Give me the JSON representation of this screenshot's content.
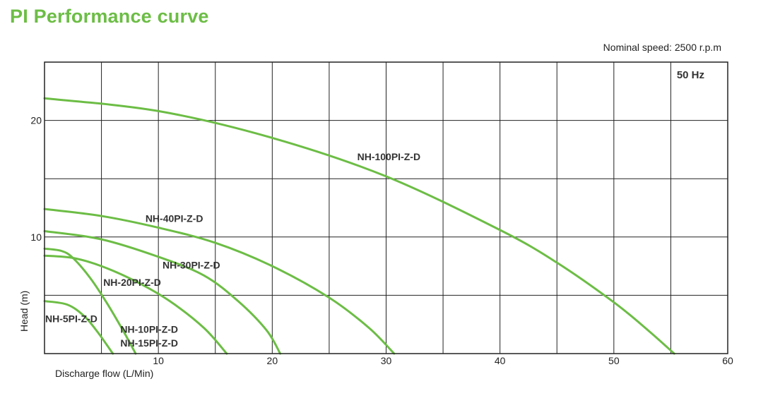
{
  "chart_data": {
    "type": "line",
    "title": "PI Performance curve",
    "subtitle": "Nominal speed: 2500 r.p.m",
    "annotation": "50 Hz",
    "xlabel": "Discharge flow (L/Min)",
    "ylabel": "Head (m)",
    "xlim": [
      0,
      60
    ],
    "ylim": [
      0,
      25
    ],
    "xticks": [
      10,
      20,
      30,
      40,
      50,
      60
    ],
    "yticks": [
      10,
      20
    ],
    "grid": true,
    "line_color": "#6cbd45",
    "title_color": "#6cbd45",
    "series": [
      {
        "name": "NH-5PI-Z-D",
        "x": [
          0,
          2,
          3.5,
          4.7,
          6
        ],
        "y": [
          4.5,
          4.2,
          3.2,
          1.8,
          0
        ]
      },
      {
        "name": "NH-10PI-Z-D",
        "x": [
          0,
          1.5,
          2.5,
          4,
          5.5,
          7,
          8
        ],
        "y": [
          9.0,
          8.8,
          8.2,
          6.5,
          4.3,
          1.8,
          0
        ]
      },
      {
        "name": "NH-15PI-Z-D",
        "x": [
          0,
          2.5,
          5,
          8,
          11,
          14,
          16
        ],
        "y": [
          8.4,
          8.2,
          7.5,
          6.2,
          4.5,
          2.2,
          0
        ]
      },
      {
        "name": "NH-20PI-Z-D",
        "x": [
          0,
          5,
          10,
          14,
          17,
          19.5,
          20.7
        ],
        "y": [
          10.5,
          9.8,
          8.3,
          6.7,
          4.5,
          2,
          0
        ]
      },
      {
        "name": "NH-30PI-Z-D",
        "x": [
          0,
          5,
          10,
          15,
          20,
          25,
          28.5,
          30.7
        ],
        "y": [
          12.4,
          11.8,
          10.8,
          9.5,
          7.5,
          4.8,
          2.2,
          0
        ]
      },
      {
        "name": "NH-40PI-Z-D",
        "x": [
          0,
          10,
          20,
          30,
          40,
          45,
          50,
          53,
          55.3
        ],
        "y": [
          21.9,
          20.8,
          18.5,
          15.2,
          10.6,
          7.8,
          4.4,
          2,
          0
        ]
      },
      {
        "name": "NH-100PI-Z-D",
        "x": [],
        "y": []
      }
    ],
    "labels": [
      {
        "text": "NH-100PI-Z-D",
        "x": 27.4,
        "y": 16.6
      },
      {
        "text": "NH-40PI-Z-D",
        "x": 8.8,
        "y": 11.3
      },
      {
        "text": "NH-30PI-Z-D",
        "x": 10.3,
        "y": 7.3
      },
      {
        "text": "NH-20PI-Z-D",
        "x": 5.1,
        "y": 5.8
      },
      {
        "text": "NH-5PI-Z-D",
        "x": 0,
        "y": 2.7
      },
      {
        "text": "NH-10PI-Z-D",
        "x": 6.6,
        "y": 1.8
      },
      {
        "text": "NH-15PI-Z-D",
        "x": 6.6,
        "y": 0.6
      }
    ]
  }
}
